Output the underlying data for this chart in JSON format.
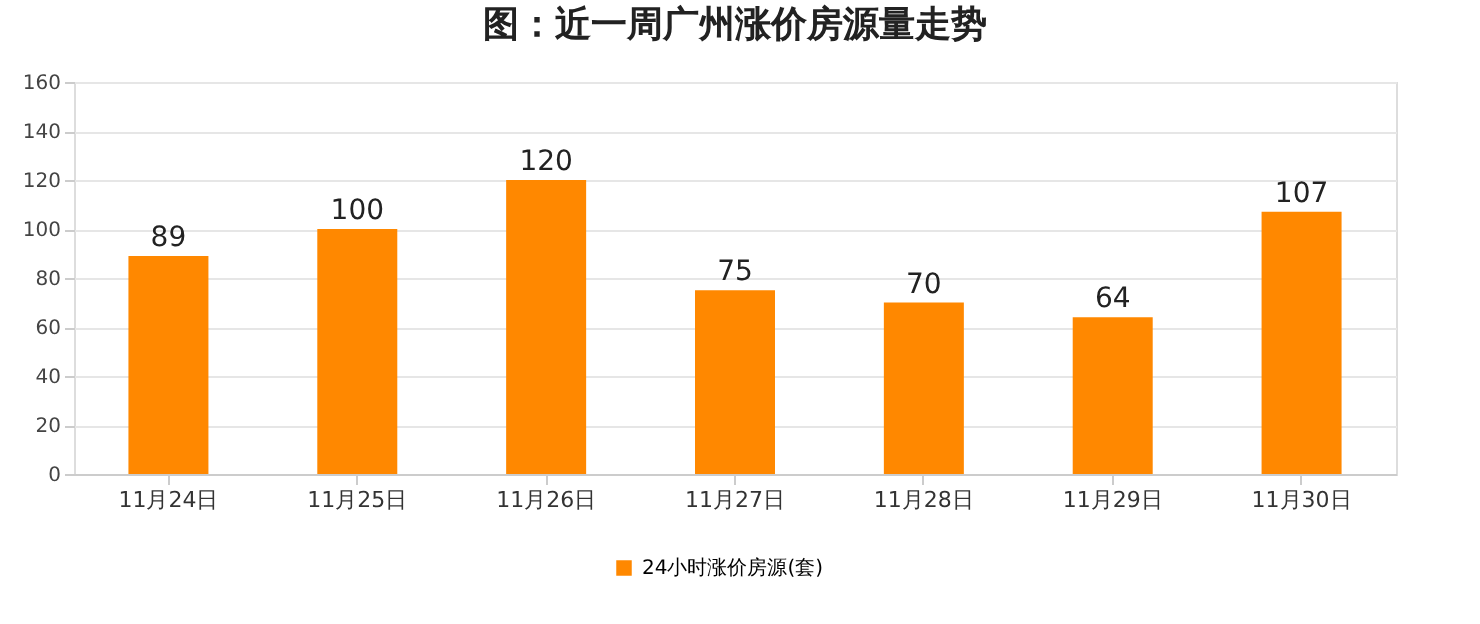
{
  "chart_data": {
    "type": "bar",
    "title": "图：近一周广州涨价房源量走势",
    "categories": [
      "11月24日",
      "11月25日",
      "11月26日",
      "11月27日",
      "11月28日",
      "11月29日",
      "11月30日"
    ],
    "series": [
      {
        "name": "24小时涨价房源(套)",
        "color": "#ff8800",
        "values": [
          89,
          100,
          120,
          75,
          70,
          64,
          107
        ]
      }
    ],
    "ylim": [
      0,
      160
    ],
    "yticks": [
      0,
      20,
      40,
      60,
      80,
      100,
      120,
      140,
      160
    ],
    "grid": "y",
    "legend": "bottom",
    "data_labels": true
  }
}
